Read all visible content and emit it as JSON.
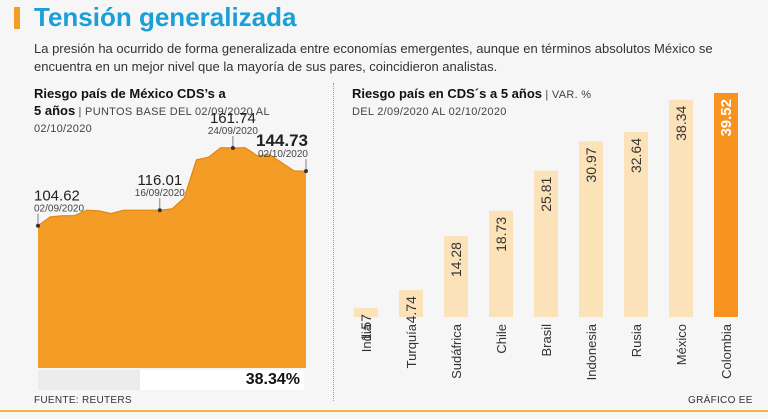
{
  "header": {
    "title": "Tensión generalizada",
    "subtitle": "La presión ha ocurrido de forma generalizada entre economías emergentes, aunque en términos absolutos México se encuentra en un mejor nivel que la mayoría de sus pares, coincidieron analistas."
  },
  "left_chart": {
    "title_line1": "Riesgo país de México CDS’s a",
    "title_line2": "5 años",
    "note_line2": " | PUNTOS BASE DEL 02/09/2020 AL",
    "note_line3": "02/10/2020",
    "change_pct": "38.34%"
  },
  "right_chart": {
    "title": "Riesgo país en CDS´s a 5 años",
    "note1": " | VAR. %",
    "note2": "DEL 2/09/2020 AL 02/10/2020"
  },
  "footer": {
    "source": "FUENTE: REUTERS",
    "credit": "GRÁFICO EE"
  },
  "colors": {
    "accent": "#f39c26",
    "bar_light": "#fce2b8",
    "bar_highlight": "#f7931e",
    "title_blue": "#1a9fd6"
  },
  "chart_data": [
    {
      "type": "area",
      "title": "Riesgo país de México CDS’s a 5 años",
      "ylabel": "Puntos base",
      "x": [
        "02/09/2020",
        "03/09/2020",
        "04/09/2020",
        "07/09/2020",
        "08/09/2020",
        "09/09/2020",
        "10/09/2020",
        "11/09/2020",
        "14/09/2020",
        "15/09/2020",
        "16/09/2020",
        "17/09/2020",
        "18/09/2020",
        "21/09/2020",
        "22/09/2020",
        "23/09/2020",
        "24/09/2020",
        "25/09/2020",
        "28/09/2020",
        "29/09/2020",
        "30/09/2020",
        "01/10/2020",
        "02/10/2020"
      ],
      "values": [
        104.62,
        111,
        112,
        112,
        116,
        115.5,
        113.5,
        116,
        116,
        116,
        116.01,
        117,
        125,
        153,
        155,
        162,
        161.74,
        162,
        156,
        157,
        151,
        145,
        144.73
      ],
      "ylim": [
        0,
        175
      ],
      "annotations": [
        {
          "label": "104.62",
          "sub": "02/09/2020",
          "index": 0,
          "bold": false
        },
        {
          "label": "116.01",
          "sub": "16/09/2020",
          "index": 10,
          "bold": false
        },
        {
          "label": "161.74",
          "sub": "24/09/2020",
          "index": 16,
          "bold": false
        },
        {
          "label": "144.73",
          "sub": "02/10/2020",
          "index": 22,
          "bold": true
        }
      ]
    },
    {
      "type": "bar",
      "title": "Riesgo país en CDS´s a 5 años",
      "ylabel": "Var. %",
      "categories": [
        "India",
        "Turquía",
        "Sudáfrica",
        "Chile",
        "Brasil",
        "Indonesia",
        "Rusia",
        "México",
        "Colombia"
      ],
      "values": [
        1.57,
        4.74,
        14.28,
        18.73,
        25.81,
        30.97,
        32.64,
        38.34,
        39.52
      ],
      "value_labels": [
        "1.57",
        "4.74",
        "14.28",
        "18.73",
        "25.81",
        "30.97",
        "32.64",
        "38.34",
        "39.52"
      ],
      "highlight": "Colombia",
      "ylim": [
        0,
        39.52
      ]
    }
  ]
}
